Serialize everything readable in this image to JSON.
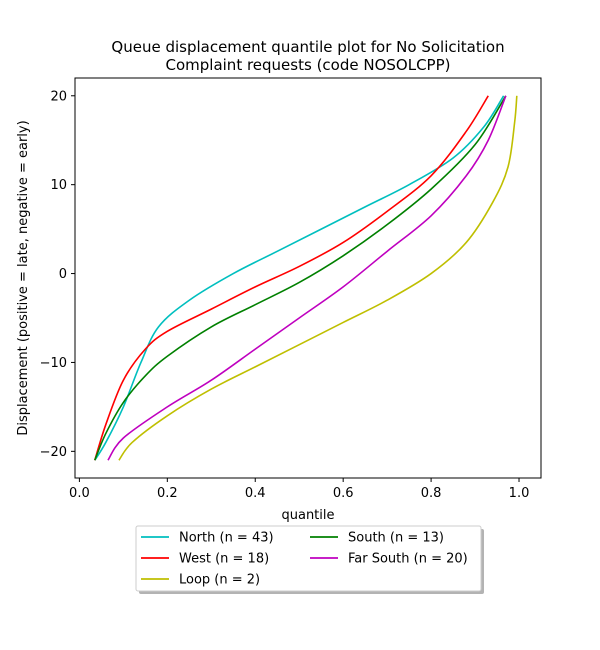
{
  "chart_data": {
    "type": "line",
    "title_lines": [
      "Queue displacement quantile plot for No Solicitation",
      "Complaint  requests (code NOSOLCPP)"
    ],
    "xlabel": "quantile",
    "ylabel": "Displacement (positive = late, negative = early)",
    "xlim": [
      -0.01,
      1.05
    ],
    "ylim": [
      -23,
      22
    ],
    "xticks": [
      0.0,
      0.2,
      0.4,
      0.6,
      0.8,
      1.0
    ],
    "xtick_labels": [
      "0.0",
      "0.2",
      "0.4",
      "0.6",
      "0.8",
      "1.0"
    ],
    "yticks": [
      20,
      10,
      0,
      -10,
      -20
    ],
    "ytick_labels": [
      "20",
      "10",
      "0",
      "−10",
      "−20"
    ],
    "grid": false,
    "legend_position": "below plot, centered, two columns",
    "series": [
      {
        "name": "North (n = 43)",
        "color": "#00bfbf",
        "points": [
          [
            0.035,
            -21
          ],
          [
            0.06,
            -19
          ],
          [
            0.1,
            -15
          ],
          [
            0.14,
            -10
          ],
          [
            0.18,
            -6
          ],
          [
            0.25,
            -3
          ],
          [
            0.35,
            0
          ],
          [
            0.45,
            2.5
          ],
          [
            0.55,
            5
          ],
          [
            0.65,
            7.5
          ],
          [
            0.75,
            10
          ],
          [
            0.85,
            13
          ],
          [
            0.92,
            16.5
          ],
          [
            0.965,
            20
          ]
        ]
      },
      {
        "name": "West (n = 18)",
        "color": "#ff0000",
        "points": [
          [
            0.035,
            -21
          ],
          [
            0.06,
            -17
          ],
          [
            0.1,
            -12
          ],
          [
            0.15,
            -8.5
          ],
          [
            0.2,
            -6.5
          ],
          [
            0.3,
            -4
          ],
          [
            0.4,
            -1.5
          ],
          [
            0.5,
            0.8
          ],
          [
            0.6,
            3.5
          ],
          [
            0.7,
            7
          ],
          [
            0.8,
            11
          ],
          [
            0.88,
            16
          ],
          [
            0.93,
            20
          ]
        ]
      },
      {
        "name": "Loop (n = 2)",
        "color": "#bfbf00",
        "points": [
          [
            0.09,
            -21
          ],
          [
            0.12,
            -19
          ],
          [
            0.2,
            -16
          ],
          [
            0.3,
            -13
          ],
          [
            0.4,
            -10.5
          ],
          [
            0.5,
            -8
          ],
          [
            0.6,
            -5.5
          ],
          [
            0.7,
            -3
          ],
          [
            0.8,
            0
          ],
          [
            0.88,
            3.5
          ],
          [
            0.94,
            8
          ],
          [
            0.975,
            12
          ],
          [
            0.99,
            17
          ],
          [
            0.995,
            20
          ]
        ]
      },
      {
        "name": "South (n = 13)",
        "color": "#008000",
        "points": [
          [
            0.035,
            -21
          ],
          [
            0.06,
            -18
          ],
          [
            0.1,
            -14.5
          ],
          [
            0.15,
            -11.5
          ],
          [
            0.2,
            -9.3
          ],
          [
            0.3,
            -6
          ],
          [
            0.4,
            -3.5
          ],
          [
            0.5,
            -1
          ],
          [
            0.6,
            2
          ],
          [
            0.7,
            5.5
          ],
          [
            0.8,
            9.5
          ],
          [
            0.9,
            14.5
          ],
          [
            0.97,
            20
          ]
        ]
      },
      {
        "name": "Far South (n = 20)",
        "color": "#bf00bf",
        "points": [
          [
            0.065,
            -21
          ],
          [
            0.1,
            -18.5
          ],
          [
            0.2,
            -15
          ],
          [
            0.3,
            -12
          ],
          [
            0.4,
            -8.5
          ],
          [
            0.5,
            -5
          ],
          [
            0.6,
            -1.5
          ],
          [
            0.7,
            2.5
          ],
          [
            0.8,
            6.5
          ],
          [
            0.88,
            11
          ],
          [
            0.93,
            15
          ],
          [
            0.97,
            20
          ]
        ]
      }
    ],
    "legend_order": [
      0,
      3,
      1,
      4,
      2
    ]
  }
}
